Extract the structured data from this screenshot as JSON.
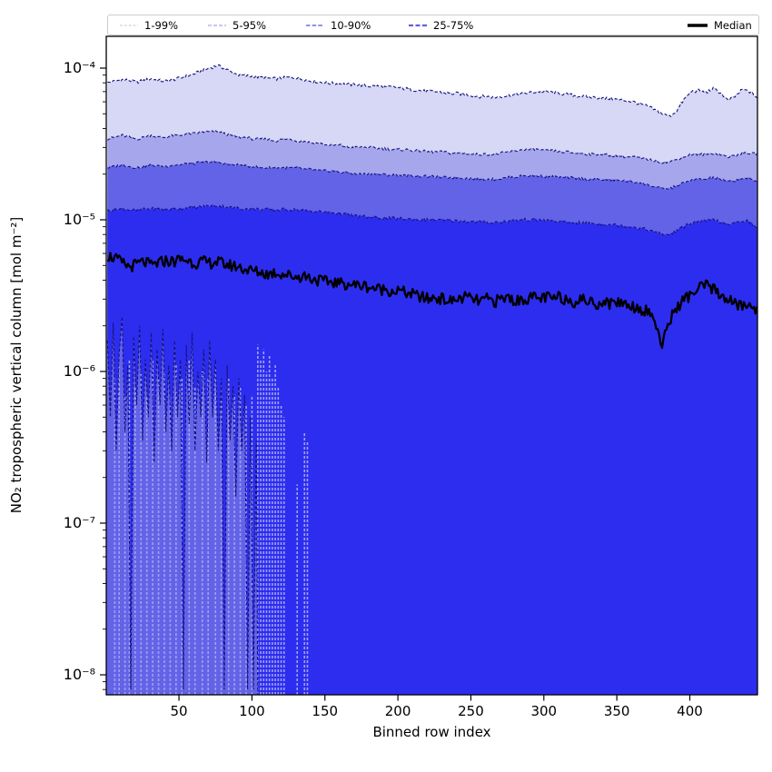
{
  "figure": {
    "background": "#ffffff"
  },
  "chart_data": {
    "type": "area",
    "title": "",
    "xlabel": "Binned row index",
    "ylabel": "NO₂ tropospheric vertical column [mol m⁻²]",
    "x_range": [
      1,
      446
    ],
    "x_major_ticks": [
      50,
      100,
      150,
      200,
      250,
      300,
      350,
      400
    ],
    "x_tick_labels": [
      "50",
      "100",
      "150",
      "200",
      "250",
      "300",
      "350",
      "400"
    ],
    "y_scale": "log",
    "y_tick_exponents": [
      -4,
      -5,
      -6,
      -7,
      -8
    ],
    "y_tick_labels": [
      "10⁻⁴",
      "10⁻⁵",
      "10⁻⁶",
      "10⁻⁷",
      "10⁻⁸"
    ],
    "y_axis_top_value": 0.00016,
    "y_axis_bottom_value": 7.5e-09,
    "grid": false,
    "legend_position": "top, full-width, 5 columns",
    "legend": [
      {
        "label": "1-99%",
        "color": "#c6c6e6",
        "width": 1.0,
        "dash": "3,1.8"
      },
      {
        "label": "5-95%",
        "color": "#a9a9ec",
        "width": 1.3,
        "dash": "4,2"
      },
      {
        "label": "10-90%",
        "color": "#8181ea",
        "width": 1.7,
        "dash": "4.5,2.2"
      },
      {
        "label": "25-75%",
        "color": "#6161e0",
        "width": 2.2,
        "dash": "5,2.5"
      },
      {
        "label": "Median",
        "color": "#000000",
        "width": 3.5,
        "dash": ""
      }
    ],
    "bands": [
      {
        "name": "1-99%",
        "fill": "#d7d7f6"
      },
      {
        "name": "5-95%",
        "fill": "#a6a6ed"
      },
      {
        "name": "10-90%",
        "fill": "#6363e8"
      },
      {
        "name": "25-75%",
        "fill": "#2d2df0"
      }
    ],
    "edge_line": {
      "color": "#13137d",
      "width": 1.1,
      "dash": "3.5,2.2"
    },
    "median_line": {
      "color": "#000000",
      "width": 2.3
    },
    "series": {
      "x_start": 1,
      "x_step": 5,
      "p99": {
        "scale": 1e-05,
        "values": [
          8.0,
          8.2,
          8.4,
          8.3,
          8.1,
          8.3,
          8.5,
          8.3,
          8.2,
          8.4,
          8.6,
          8.9,
          9.2,
          9.6,
          10.0,
          10.4,
          10.0,
          9.4,
          9.0,
          8.9,
          8.8,
          8.7,
          8.6,
          8.5,
          8.6,
          8.7,
          8.6,
          8.4,
          8.2,
          8.1,
          8.0,
          7.9,
          7.9,
          7.8,
          7.8,
          7.7,
          7.6,
          7.6,
          7.5,
          7.5,
          7.4,
          7.3,
          7.2,
          7.1,
          7.0,
          7.0,
          6.9,
          6.8,
          6.8,
          6.7,
          6.6,
          6.5,
          6.5,
          6.4,
          6.5,
          6.6,
          6.7,
          6.8,
          6.9,
          7.0,
          7.0,
          6.9,
          6.8,
          6.7,
          6.6,
          6.5,
          6.4,
          6.4,
          6.3,
          6.3,
          6.2,
          6.1,
          6.0,
          5.8,
          5.6,
          5.3,
          5.0,
          4.8,
          5.2,
          6.2,
          7.0,
          7.1,
          6.9,
          7.3,
          6.9,
          6.1,
          6.5,
          7.2,
          7.0,
          6.4
        ]
      },
      "p95": {
        "scale": 1e-05,
        "values": [
          3.4,
          3.5,
          3.6,
          3.5,
          3.4,
          3.5,
          3.6,
          3.5,
          3.5,
          3.6,
          3.6,
          3.7,
          3.7,
          3.8,
          3.8,
          3.8,
          3.7,
          3.6,
          3.5,
          3.5,
          3.4,
          3.4,
          3.4,
          3.3,
          3.4,
          3.4,
          3.3,
          3.3,
          3.2,
          3.2,
          3.1,
          3.1,
          3.1,
          3.0,
          3.0,
          3.0,
          3.0,
          2.95,
          2.95,
          2.9,
          2.9,
          2.9,
          2.85,
          2.85,
          2.8,
          2.8,
          2.8,
          2.75,
          2.75,
          2.75,
          2.7,
          2.7,
          2.7,
          2.7,
          2.75,
          2.8,
          2.85,
          2.9,
          2.9,
          2.9,
          2.85,
          2.85,
          2.8,
          2.8,
          2.75,
          2.75,
          2.7,
          2.7,
          2.7,
          2.65,
          2.65,
          2.6,
          2.6,
          2.55,
          2.5,
          2.45,
          2.4,
          2.4,
          2.5,
          2.6,
          2.7,
          2.7,
          2.7,
          2.75,
          2.7,
          2.6,
          2.65,
          2.75,
          2.75,
          2.7
        ]
      },
      "p90": {
        "scale": 1e-05,
        "values": [
          2.2,
          2.25,
          2.3,
          2.25,
          2.2,
          2.25,
          2.3,
          2.25,
          2.25,
          2.3,
          2.3,
          2.35,
          2.35,
          2.4,
          2.4,
          2.4,
          2.35,
          2.3,
          2.3,
          2.25,
          2.25,
          2.2,
          2.2,
          2.2,
          2.2,
          2.2,
          2.2,
          2.15,
          2.15,
          2.1,
          2.1,
          2.1,
          2.05,
          2.05,
          2.0,
          2.0,
          2.0,
          2.0,
          1.98,
          1.97,
          1.96,
          1.95,
          1.95,
          1.94,
          1.93,
          1.92,
          1.9,
          1.9,
          1.9,
          1.88,
          1.87,
          1.86,
          1.85,
          1.85,
          1.87,
          1.9,
          1.92,
          1.95,
          1.95,
          1.95,
          1.93,
          1.92,
          1.9,
          1.9,
          1.88,
          1.87,
          1.85,
          1.85,
          1.84,
          1.83,
          1.82,
          1.8,
          1.78,
          1.75,
          1.7,
          1.65,
          1.6,
          1.6,
          1.68,
          1.75,
          1.82,
          1.85,
          1.85,
          1.9,
          1.85,
          1.78,
          1.82,
          1.88,
          1.86,
          1.78
        ]
      },
      "p75": {
        "scale": 1e-05,
        "values": [
          1.15,
          1.17,
          1.18,
          1.17,
          1.15,
          1.17,
          1.18,
          1.18,
          1.17,
          1.18,
          1.19,
          1.2,
          1.21,
          1.22,
          1.23,
          1.24,
          1.22,
          1.2,
          1.19,
          1.18,
          1.18,
          1.17,
          1.17,
          1.16,
          1.17,
          1.17,
          1.16,
          1.15,
          1.14,
          1.13,
          1.12,
          1.11,
          1.1,
          1.08,
          1.06,
          1.05,
          1.04,
          1.03,
          1.03,
          1.02,
          1.02,
          1.01,
          1.01,
          1.0,
          1.0,
          1.0,
          0.99,
          0.99,
          0.98,
          0.98,
          0.97,
          0.97,
          0.96,
          0.96,
          0.97,
          0.98,
          0.99,
          1.0,
          1.0,
          1.0,
          0.99,
          0.98,
          0.97,
          0.96,
          0.96,
          0.95,
          0.95,
          0.94,
          0.94,
          0.93,
          0.92,
          0.91,
          0.9,
          0.88,
          0.86,
          0.83,
          0.8,
          0.8,
          0.85,
          0.9,
          0.95,
          0.97,
          0.98,
          1.0,
          0.97,
          0.92,
          0.95,
          0.99,
          0.97,
          0.88
        ]
      },
      "median": {
        "scale": 1e-06,
        "values": [
          5.8,
          5.6,
          5.2,
          4.9,
          5.1,
          5.3,
          5.0,
          5.2,
          5.4,
          5.3,
          5.5,
          5.4,
          5.2,
          5.3,
          5.2,
          5.3,
          5.1,
          5.0,
          4.9,
          4.7,
          4.6,
          4.5,
          4.4,
          4.5,
          4.4,
          4.3,
          4.2,
          4.3,
          4.1,
          4.0,
          3.9,
          3.9,
          3.8,
          3.8,
          3.7,
          3.7,
          3.6,
          3.5,
          3.5,
          3.4,
          3.4,
          3.3,
          3.2,
          3.1,
          3.0,
          3.1,
          3.0,
          2.9,
          3.0,
          3.1,
          3.0,
          2.9,
          3.0,
          2.9,
          3.0,
          3.1,
          2.9,
          3.0,
          3.1,
          3.0,
          3.1,
          3.0,
          3.1,
          3.0,
          2.9,
          3.0,
          2.9,
          2.8,
          2.9,
          2.8,
          2.9,
          2.8,
          2.7,
          2.6,
          2.5,
          2.2,
          1.4,
          2.2,
          2.6,
          3.0,
          3.2,
          3.5,
          3.7,
          3.5,
          3.2,
          3.0,
          2.8,
          2.7,
          2.7,
          2.6
        ]
      },
      "p25_lower": {
        "scale": 1e-06,
        "end_index": 104,
        "pairs": [
          [
            1,
            1.6
          ],
          [
            3,
            0.5
          ],
          [
            5,
            2.1
          ],
          [
            7,
            0.3
          ],
          [
            9,
            1.3
          ],
          [
            11,
            2.3
          ],
          [
            13,
            0.4
          ],
          [
            15,
            1.1
          ],
          [
            17,
            0.008
          ],
          [
            19,
            1.7
          ],
          [
            21,
            0.6
          ],
          [
            23,
            2.0
          ],
          [
            25,
            0.35
          ],
          [
            27,
            1.2
          ],
          [
            29,
            0.5
          ],
          [
            31,
            1.8
          ],
          [
            33,
            0.25
          ],
          [
            35,
            1.4
          ],
          [
            37,
            0.6
          ],
          [
            39,
            1.9
          ],
          [
            41,
            0.4
          ],
          [
            43,
            1.1
          ],
          [
            45,
            0.3
          ],
          [
            47,
            1.6
          ],
          [
            49,
            0.5
          ],
          [
            51,
            1.2
          ],
          [
            53,
            0.008
          ],
          [
            55,
            1.5
          ],
          [
            57,
            0.45
          ],
          [
            59,
            1.8
          ],
          [
            61,
            0.3
          ],
          [
            63,
            1.0
          ],
          [
            65,
            0.5
          ],
          [
            67,
            1.4
          ],
          [
            69,
            0.25
          ],
          [
            71,
            1.6
          ],
          [
            73,
            0.5
          ],
          [
            75,
            1.2
          ],
          [
            77,
            0.3
          ],
          [
            79,
            0.9
          ],
          [
            81,
            0.008
          ],
          [
            83,
            1.1
          ],
          [
            85,
            0.35
          ],
          [
            87,
            0.8
          ],
          [
            89,
            0.15
          ],
          [
            91,
            0.9
          ],
          [
            93,
            0.3
          ],
          [
            95,
            0.7
          ],
          [
            97,
            0.008
          ],
          [
            99,
            0.5
          ],
          [
            101,
            0.008
          ],
          [
            103,
            0.35
          ],
          [
            104,
            0.004
          ]
        ]
      }
    },
    "jitter": {
      "p99": 0.025,
      "p95": 0.02,
      "p90": 0.02,
      "p75": 0.025,
      "median": 0.09
    },
    "streaks": {
      "color": "#9fa0ef",
      "width": 1.6,
      "dash": "3,2",
      "scale": 1e-06,
      "items": [
        [
          6,
          0.9
        ],
        [
          9,
          1.1
        ],
        [
          13,
          0.7
        ],
        [
          16,
          1.2
        ],
        [
          20,
          0.8
        ],
        [
          24,
          1.0
        ],
        [
          28,
          0.7
        ],
        [
          32,
          1.2
        ],
        [
          36,
          0.9
        ],
        [
          40,
          1.0
        ],
        [
          44,
          0.7
        ],
        [
          48,
          1.1
        ],
        [
          52,
          0.9
        ],
        [
          57,
          1.2
        ],
        [
          61,
          0.8
        ],
        [
          66,
          1.0
        ],
        [
          70,
          0.9
        ],
        [
          75,
          1.1
        ],
        [
          79,
          0.8
        ],
        [
          84,
          0.9
        ],
        [
          88,
          0.7
        ],
        [
          92,
          0.8
        ],
        [
          96,
          0.6
        ],
        [
          100,
          0.7
        ],
        [
          104,
          1.5
        ],
        [
          106,
          1.2
        ],
        [
          108,
          1.4
        ],
        [
          110,
          1.0
        ],
        [
          112,
          1.3
        ],
        [
          114,
          0.9
        ],
        [
          116,
          1.1
        ],
        [
          118,
          0.8
        ],
        [
          120,
          0.6
        ],
        [
          122,
          0.5
        ],
        [
          131,
          0.18
        ],
        [
          136,
          0.4
        ],
        [
          138,
          0.35
        ]
      ]
    },
    "axis_color": "#000000"
  }
}
